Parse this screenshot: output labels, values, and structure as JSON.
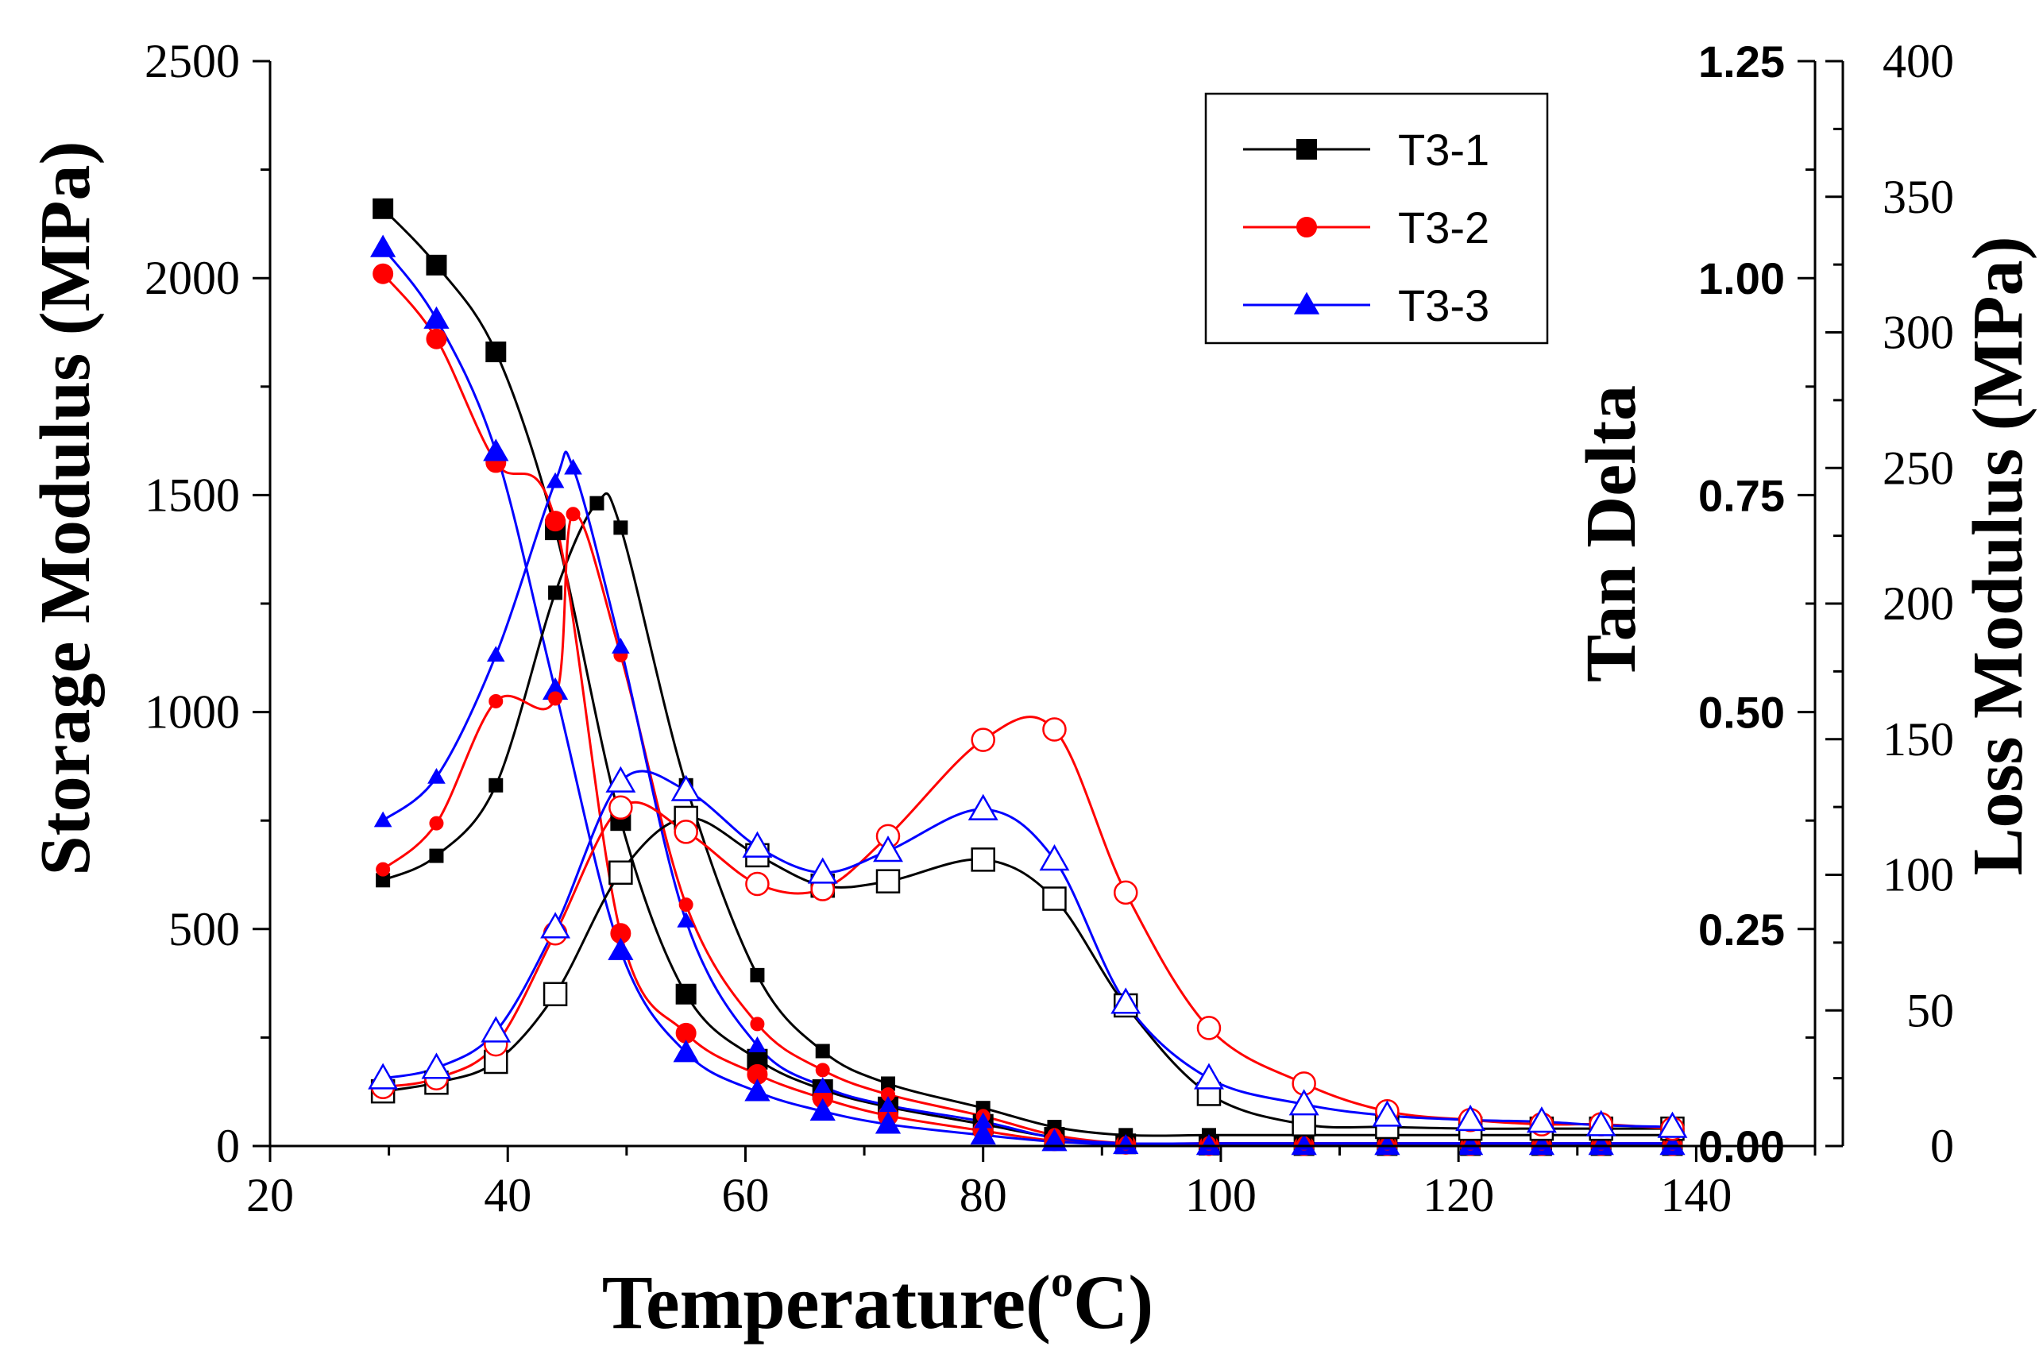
{
  "chart_data": {
    "type": "line",
    "x_axis": {
      "label": "Temperature(",
      "label_sup": "o",
      "label_end": "C)",
      "range": [
        20,
        150
      ],
      "ticks": [
        20,
        40,
        60,
        80,
        100,
        120,
        140
      ]
    },
    "y_left": {
      "label": "Storage Modulus (MPa)",
      "range": [
        0,
        2500
      ],
      "ticks": [
        0,
        500,
        1000,
        1500,
        2000,
        2500
      ]
    },
    "y_tan": {
      "label": "Tan Delta",
      "range": [
        0,
        1.25
      ],
      "ticks": [
        "0.00",
        "0.25",
        "0.50",
        "0.75",
        "1.00",
        "1.25"
      ]
    },
    "y_loss": {
      "label": "Loss Modulus (MPa)",
      "range": [
        0,
        400
      ],
      "ticks": [
        0,
        50,
        100,
        150,
        200,
        250,
        300,
        350,
        400
      ]
    },
    "legend": {
      "position": "top-right",
      "entries": [
        "T3-1",
        "T3-2",
        "T3-3"
      ]
    },
    "colors": {
      "T3-1": "#000000",
      "T3-2": "#ff0000",
      "T3-3": "#0000ff"
    },
    "series": [
      {
        "name": "T3-1",
        "kind": "storage",
        "axis": "left",
        "marker": "square",
        "filled": true,
        "x": [
          29.5,
          34,
          39,
          44,
          49.5,
          55,
          61,
          66.5,
          72,
          80,
          86,
          92,
          99,
          107,
          114,
          121,
          127,
          132,
          138
        ],
        "y": [
          2160,
          2030,
          1830,
          1420,
          750,
          350,
          200,
          130,
          90,
          50,
          20,
          5,
          2,
          1,
          1,
          1,
          1,
          1,
          1
        ]
      },
      {
        "name": "T3-2",
        "kind": "storage",
        "axis": "left",
        "marker": "circle",
        "filled": true,
        "x": [
          29.5,
          34,
          39,
          44,
          49.5,
          55,
          61,
          66.5,
          72,
          80,
          86,
          92,
          99,
          107,
          114,
          121,
          127,
          132,
          138
        ],
        "y": [
          2010,
          1860,
          1575,
          1440,
          490,
          260,
          165,
          110,
          70,
          35,
          12,
          4,
          1,
          1,
          1,
          1,
          1,
          1,
          1
        ]
      },
      {
        "name": "T3-3",
        "kind": "storage",
        "axis": "left",
        "marker": "triangle",
        "filled": true,
        "x": [
          29.5,
          34,
          39,
          44,
          49.5,
          55,
          61,
          66.5,
          72,
          80,
          86,
          92,
          99,
          107,
          114,
          121,
          127,
          132,
          138
        ],
        "y": [
          2070,
          1905,
          1600,
          1050,
          450,
          215,
          125,
          80,
          50,
          25,
          10,
          3,
          1,
          1,
          1,
          1,
          1,
          1,
          1
        ]
      },
      {
        "name": "T3-1",
        "kind": "loss",
        "axis": "loss",
        "marker": "square",
        "filled": true,
        "small": true,
        "x": [
          29.5,
          34,
          39,
          44,
          47.5,
          49.5,
          55,
          61,
          66.5,
          72,
          80,
          86,
          92,
          99,
          107,
          114,
          121,
          127,
          132,
          138
        ],
        "y": [
          98,
          107,
          133,
          204,
          237,
          228,
          133,
          63,
          35,
          23,
          14,
          7,
          4,
          4,
          4,
          4,
          4,
          4,
          4,
          4
        ]
      },
      {
        "name": "T3-2",
        "kind": "loss",
        "axis": "loss",
        "marker": "circle",
        "filled": true,
        "small": true,
        "x": [
          29.5,
          34,
          39,
          44,
          45.5,
          49.5,
          55,
          61,
          66.5,
          72,
          80,
          86,
          92,
          99,
          107,
          114,
          121,
          127,
          132,
          138
        ],
        "y": [
          102,
          119,
          164,
          165,
          233,
          181,
          89,
          45,
          28,
          19,
          11,
          4,
          1,
          1,
          1,
          1,
          1,
          1,
          1,
          1
        ]
      },
      {
        "name": "T3-3",
        "kind": "loss",
        "axis": "loss",
        "marker": "triangle",
        "filled": true,
        "small": true,
        "x": [
          29.5,
          34,
          39,
          44,
          45.5,
          49.5,
          55,
          61,
          66.5,
          72,
          80,
          86,
          92,
          99,
          107,
          114,
          121,
          127,
          132,
          138
        ],
        "y": [
          120,
          136,
          181,
          245,
          250,
          184,
          83,
          37,
          22,
          15,
          9,
          3,
          1,
          1,
          1,
          1,
          1,
          1,
          1,
          1
        ]
      },
      {
        "name": "T3-1",
        "kind": "tan_delta",
        "axis": "tan",
        "marker": "square",
        "filled": false,
        "x": [
          29.5,
          34,
          39,
          44,
          49.5,
          55,
          61,
          66.5,
          72,
          80,
          86,
          92,
          99,
          107,
          114,
          121,
          127,
          132,
          138
        ],
        "y": [
          0.063,
          0.073,
          0.097,
          0.175,
          0.315,
          0.378,
          0.335,
          0.3,
          0.305,
          0.33,
          0.285,
          0.162,
          0.06,
          0.025,
          0.022,
          0.02,
          0.02,
          0.02,
          0.02
        ]
      },
      {
        "name": "T3-2",
        "kind": "tan_delta",
        "axis": "tan",
        "marker": "circle",
        "filled": false,
        "x": [
          29.5,
          34,
          39,
          44,
          49.5,
          55,
          61,
          66.5,
          72,
          80,
          86,
          92,
          99,
          107,
          114,
          121,
          127,
          132,
          138
        ],
        "y": [
          0.068,
          0.078,
          0.117,
          0.245,
          0.39,
          0.362,
          0.302,
          0.296,
          0.357,
          0.468,
          0.48,
          0.292,
          0.136,
          0.072,
          0.04,
          0.03,
          0.025,
          0.025,
          0.02
        ]
      },
      {
        "name": "T3-3",
        "kind": "tan_delta",
        "axis": "tan",
        "marker": "triangle",
        "filled": false,
        "x": [
          29.5,
          34,
          39,
          44,
          49.5,
          55,
          61,
          66.5,
          72,
          80,
          86,
          92,
          99,
          107,
          114,
          121,
          127,
          132,
          138
        ],
        "y": [
          0.078,
          0.09,
          0.132,
          0.252,
          0.42,
          0.41,
          0.345,
          0.315,
          0.34,
          0.388,
          0.33,
          0.165,
          0.078,
          0.048,
          0.035,
          0.03,
          0.028,
          0.024,
          0.022
        ]
      }
    ]
  }
}
